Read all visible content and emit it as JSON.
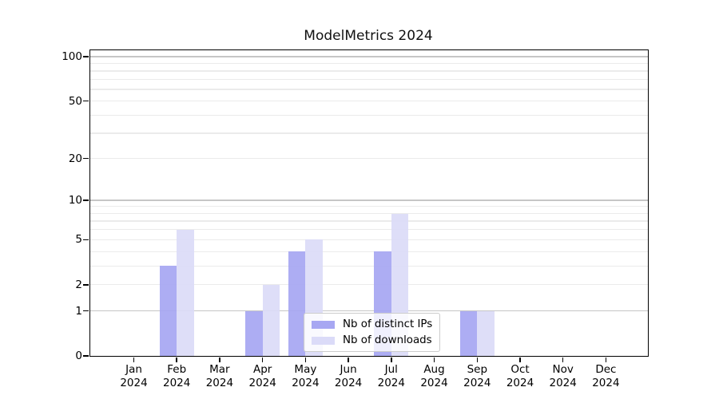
{
  "title": "ModelMetrics 2024",
  "colors": {
    "ips": "#a7a7f2",
    "downloads": "#dbdbf8",
    "grid_major": "#c6c6c6",
    "grid_minor": "#ebebeb",
    "spine": "#000000"
  },
  "legend": {
    "items": [
      {
        "label": "Nb of distinct IPs",
        "series": "ips"
      },
      {
        "label": "Nb of downloads",
        "series": "downloads"
      }
    ]
  },
  "y_axis": {
    "tick_labels": [
      "0",
      "1",
      "2",
      "5",
      "10",
      "20",
      "50",
      "100"
    ],
    "ticks": [
      0,
      1,
      2,
      5,
      10,
      20,
      50,
      100
    ],
    "grid_major": [
      1,
      10,
      100
    ],
    "grid_minor": [
      2,
      3,
      4,
      5,
      6,
      7,
      8,
      9,
      20,
      30,
      40,
      50,
      60,
      70,
      80,
      90
    ]
  },
  "x_axis": {
    "categories": [
      {
        "month": "Jan",
        "year": "2024"
      },
      {
        "month": "Feb",
        "year": "2024"
      },
      {
        "month": "Mar",
        "year": "2024"
      },
      {
        "month": "Apr",
        "year": "2024"
      },
      {
        "month": "May",
        "year": "2024"
      },
      {
        "month": "Jun",
        "year": "2024"
      },
      {
        "month": "Jul",
        "year": "2024"
      },
      {
        "month": "Aug",
        "year": "2024"
      },
      {
        "month": "Sep",
        "year": "2024"
      },
      {
        "month": "Oct",
        "year": "2024"
      },
      {
        "month": "Nov",
        "year": "2024"
      },
      {
        "month": "Dec",
        "year": "2024"
      }
    ]
  },
  "chart_data": {
    "type": "bar",
    "title": "ModelMetrics 2024",
    "categories": [
      "Jan 2024",
      "Feb 2024",
      "Mar 2024",
      "Apr 2024",
      "May 2024",
      "Jun 2024",
      "Jul 2024",
      "Aug 2024",
      "Sep 2024",
      "Oct 2024",
      "Nov 2024",
      "Dec 2024"
    ],
    "series": [
      {
        "name": "Nb of distinct IPs",
        "color": "#a7a7f2",
        "values": [
          0,
          3,
          0,
          1,
          4,
          0,
          4,
          0,
          1,
          0,
          0,
          0
        ]
      },
      {
        "name": "Nb of downloads",
        "color": "#dbdbf8",
        "values": [
          0,
          6,
          0,
          2,
          5,
          0,
          8,
          0,
          1,
          0,
          0,
          0
        ]
      }
    ],
    "xlabel": "",
    "ylabel": "",
    "y_scale": "log10(value+1)",
    "y_ticks": [
      0,
      1,
      2,
      5,
      10,
      20,
      50,
      100
    ],
    "ylim": [
      0,
      100
    ],
    "grid": true,
    "legend_position": "lower center"
  }
}
